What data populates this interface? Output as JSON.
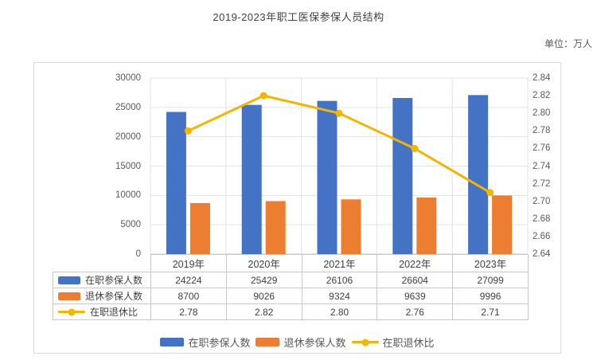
{
  "page": {
    "title": "2019-2023年职工医保参保人员结构",
    "unit_label": "单位：万人"
  },
  "chart_data": {
    "type": "bar+line",
    "title": "2019-2023年职工医保参保人员结构",
    "unit": "万人",
    "categories": [
      "2019年",
      "2020年",
      "2021年",
      "2022年",
      "2023年"
    ],
    "series": [
      {
        "name": "在职参保人数",
        "type": "bar",
        "axis": "left",
        "values": [
          24224,
          25429,
          26106,
          26604,
          27099
        ],
        "labels": [
          "24224",
          "25429",
          "26106",
          "26604",
          "27099"
        ],
        "color": "#4472C4"
      },
      {
        "name": "退休参保人数",
        "type": "bar",
        "axis": "left",
        "values": [
          8700,
          9026,
          9324,
          9639,
          9996
        ],
        "labels": [
          "8700",
          "9026",
          "9324",
          "9639",
          "9996"
        ],
        "color": "#ED7D31"
      },
      {
        "name": "在职退休比",
        "type": "line",
        "axis": "right",
        "values": [
          2.78,
          2.82,
          2.8,
          2.76,
          2.71
        ],
        "labels": [
          "2.78",
          "2.82",
          "2.80",
          "2.76",
          "2.71"
        ],
        "color": "#F2B500"
      }
    ],
    "left_axis": {
      "min": 0,
      "max": 30000,
      "step": 5000,
      "tick_labels": [
        "0",
        "5000",
        "10000",
        "15000",
        "20000",
        "25000",
        "30000"
      ]
    },
    "right_axis": {
      "min": 2.64,
      "max": 2.84,
      "step": 0.02,
      "tick_labels": [
        "2.64",
        "2.66",
        "2.68",
        "2.70",
        "2.72",
        "2.74",
        "2.76",
        "2.78",
        "2.80",
        "2.82",
        "2.84"
      ]
    },
    "grid": true,
    "legend_position": "bottom",
    "data_table_shown": true
  }
}
